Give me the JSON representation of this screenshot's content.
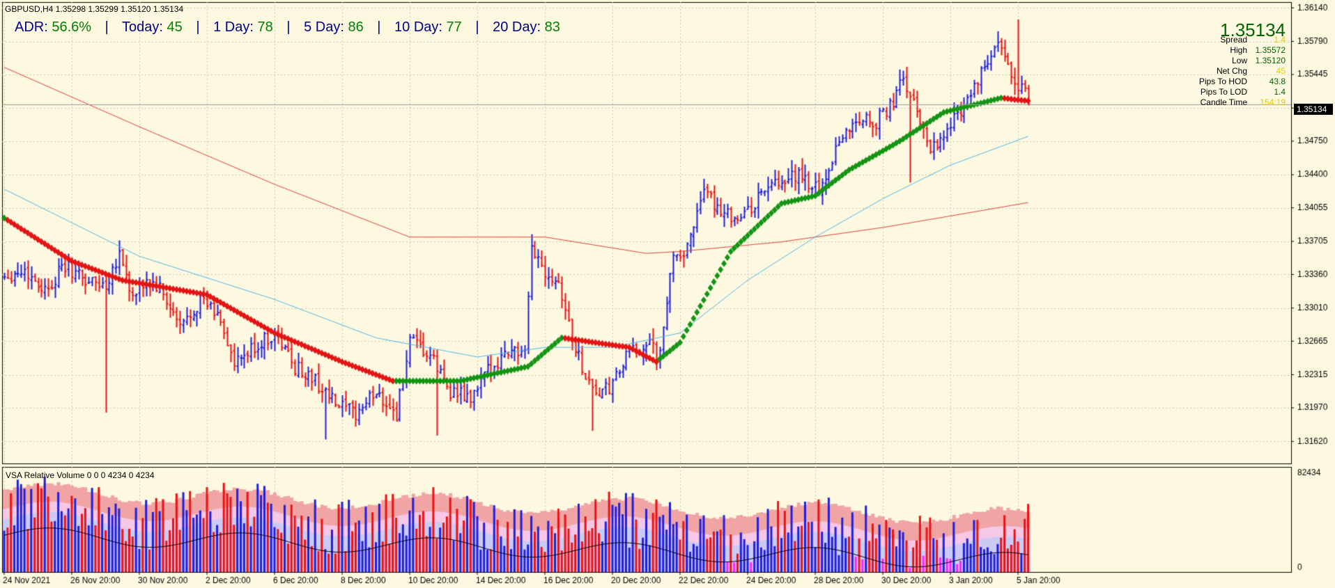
{
  "symbol_header": "GBPUSD,H4  1.35298 1.35299 1.35120 1.35134",
  "adr_bar": {
    "items": [
      {
        "label": "ADR:",
        "value": "56.6%"
      },
      {
        "label": "Today:",
        "value": "45"
      },
      {
        "label": "1 Day:",
        "value": "78"
      },
      {
        "label": "5 Day:",
        "value": "86"
      },
      {
        "label": "10 Day:",
        "value": "77"
      },
      {
        "label": "20 Day:",
        "value": "83"
      }
    ]
  },
  "info_panel": {
    "price": "1.35134",
    "rows": [
      {
        "label": "Spread",
        "value": "1.4",
        "color": "#e8c800"
      },
      {
        "label": "High",
        "value": "1.35572",
        "color": "#006400"
      },
      {
        "label": "Low",
        "value": "1.35120",
        "color": "#006400"
      },
      {
        "label": "Net Chg",
        "value": "45",
        "color": "#e8c800"
      },
      {
        "label": "Pips To HOD",
        "value": "43.8",
        "color": "#006400"
      },
      {
        "label": "Pips To LOD",
        "value": "1.4",
        "color": "#006400"
      },
      {
        "label": "Candle Time",
        "value": "154:19",
        "color": "#e8c800"
      }
    ]
  },
  "current_price_label": "1.35134",
  "volume_indicator": {
    "label": "VSA Relative Volume 0 0 0 4234 0 4234",
    "axis_labels": [
      "82434",
      "0"
    ],
    "axis_values": [
      82434,
      0
    ]
  },
  "colors": {
    "background": "#fdf9e1",
    "grid": "#c8c8b4",
    "up_bar": "#1f1fdd",
    "down_bar": "#ee1111",
    "ma_slow": "#e23a3a",
    "ma_mid": "#4fb6e8",
    "diamond_up": "#139413",
    "diamond_down": "#e21515",
    "vol_band_outer": "#f0a4a4",
    "vol_band_mid": "#f6c8e6",
    "vol_band_inner": "#cacaf4",
    "vol_up": "#1f1fdd",
    "vol_down": "#ee1111",
    "vol_low": "#ff22ff"
  },
  "chart_data": {
    "type": "ohlc",
    "title": "GBPUSD,H4",
    "y_axis": {
      "ticks": [
        1.3614,
        1.3579,
        1.35445,
        1.35095,
        1.3475,
        1.344,
        1.34055,
        1.33705,
        1.3336,
        1.3301,
        1.32665,
        1.32315,
        1.3197,
        1.3162
      ],
      "tick_labels": [
        "1.36140",
        "1.35790",
        "1.35445",
        "1.35095",
        "1.34750",
        "1.34400",
        "1.34055",
        "1.33705",
        "1.33360",
        "1.33010",
        "1.32665",
        "1.32315",
        "1.31970",
        "1.31620"
      ],
      "range": [
        1.3139,
        1.362
      ]
    },
    "x_axis": {
      "tick_labels": [
        "24 Nov 2021",
        "26 Nov 20:00",
        "30 Nov 20:00",
        "2 Dec 20:00",
        "6 Dec 20:00",
        "8 Dec 20:00",
        "10 Dec 20:00",
        "14 Dec 20:00",
        "16 Dec 20:00",
        "20 Dec 20:00",
        "22 Dec 20:00",
        "24 Dec 20:00",
        "28 Dec 20:00",
        "30 Dec 20:00",
        "3 Jan 20:00",
        "5 Jan 20:00"
      ],
      "tick_bar_index": [
        0,
        20,
        40,
        60,
        80,
        100,
        120,
        140,
        160,
        180,
        200,
        220,
        240,
        260,
        280,
        300
      ],
      "bars_total": 304
    },
    "series": [
      {
        "name": "",
        "key": "close",
        "anchors": [
          [
            0,
            1.3335
          ],
          [
            6,
            1.334
          ],
          [
            12,
            1.332
          ],
          [
            18,
            1.3345
          ],
          [
            24,
            1.333
          ],
          [
            30,
            1.3325
          ],
          [
            34,
            1.336
          ],
          [
            38,
            1.331
          ],
          [
            42,
            1.333
          ],
          [
            46,
            1.332
          ],
          [
            52,
            1.328
          ],
          [
            58,
            1.331
          ],
          [
            64,
            1.329
          ],
          [
            68,
            1.324
          ],
          [
            74,
            1.326
          ],
          [
            80,
            1.3275
          ],
          [
            86,
            1.324
          ],
          [
            92,
            1.3225
          ],
          [
            98,
            1.32
          ],
          [
            104,
            1.319
          ],
          [
            110,
            1.3215
          ],
          [
            116,
            1.319
          ],
          [
            120,
            1.3265
          ],
          [
            126,
            1.325
          ],
          [
            132,
            1.3215
          ],
          [
            138,
            1.3205
          ],
          [
            144,
            1.324
          ],
          [
            150,
            1.326
          ],
          [
            154,
            1.325
          ],
          [
            156,
            1.3365
          ],
          [
            160,
            1.334
          ],
          [
            164,
            1.333
          ],
          [
            168,
            1.327
          ],
          [
            172,
            1.323
          ],
          [
            176,
            1.321
          ],
          [
            180,
            1.322
          ],
          [
            184,
            1.325
          ],
          [
            190,
            1.3265
          ],
          [
            194,
            1.325
          ],
          [
            198,
            1.336
          ],
          [
            202,
            1.336
          ],
          [
            206,
            1.342
          ],
          [
            210,
            1.341
          ],
          [
            214,
            1.34
          ],
          [
            218,
            1.3395
          ],
          [
            222,
            1.341
          ],
          [
            226,
            1.343
          ],
          [
            230,
            1.3425
          ],
          [
            234,
            1.344
          ],
          [
            238,
            1.343
          ],
          [
            242,
            1.3425
          ],
          [
            246,
            1.347
          ],
          [
            250,
            1.349
          ],
          [
            254,
            1.35
          ],
          [
            258,
            1.3495
          ],
          [
            262,
            1.351
          ],
          [
            266,
            1.354
          ],
          [
            270,
            1.3505
          ],
          [
            274,
            1.347
          ],
          [
            278,
            1.348
          ],
          [
            282,
            1.3505
          ],
          [
            286,
            1.3525
          ],
          [
            290,
            1.355
          ],
          [
            294,
            1.3575
          ],
          [
            298,
            1.3545
          ],
          [
            302,
            1.3525
          ],
          [
            303,
            1.35134
          ]
        ]
      },
      {
        "name": "",
        "key": "ma_slow",
        "points": [
          [
            0,
            1.3552
          ],
          [
            40,
            1.349
          ],
          [
            80,
            1.343
          ],
          [
            120,
            1.3375
          ],
          [
            160,
            1.3375
          ],
          [
            190,
            1.3358
          ],
          [
            200,
            1.336
          ],
          [
            230,
            1.337
          ],
          [
            260,
            1.3385
          ],
          [
            280,
            1.3397
          ],
          [
            303,
            1.3411
          ]
        ]
      },
      {
        "name": "",
        "key": "ma_mid",
        "points": [
          [
            0,
            1.3425
          ],
          [
            40,
            1.3355
          ],
          [
            80,
            1.331
          ],
          [
            110,
            1.327
          ],
          [
            140,
            1.325
          ],
          [
            160,
            1.326
          ],
          [
            180,
            1.326
          ],
          [
            200,
            1.3275
          ],
          [
            220,
            1.333
          ],
          [
            240,
            1.3375
          ],
          [
            260,
            1.3415
          ],
          [
            280,
            1.345
          ],
          [
            303,
            1.348
          ]
        ]
      },
      {
        "name": "",
        "key": "diamond_trend",
        "points": [
          [
            0,
            1.3395
          ],
          [
            20,
            1.335
          ],
          [
            35,
            1.333
          ],
          [
            60,
            1.3315
          ],
          [
            80,
            1.3275
          ],
          [
            100,
            1.3245
          ],
          [
            115,
            1.3225
          ],
          [
            135,
            1.3225
          ],
          [
            155,
            1.324
          ],
          [
            165,
            1.327
          ],
          [
            175,
            1.3265
          ],
          [
            185,
            1.326
          ],
          [
            193,
            1.3245
          ],
          [
            200,
            1.3265
          ],
          [
            215,
            1.336
          ],
          [
            230,
            1.341
          ],
          [
            240,
            1.3418
          ],
          [
            250,
            1.3445
          ],
          [
            265,
            1.3475
          ],
          [
            278,
            1.3505
          ],
          [
            295,
            1.352
          ],
          [
            303,
            1.3517
          ]
        ]
      }
    ]
  }
}
